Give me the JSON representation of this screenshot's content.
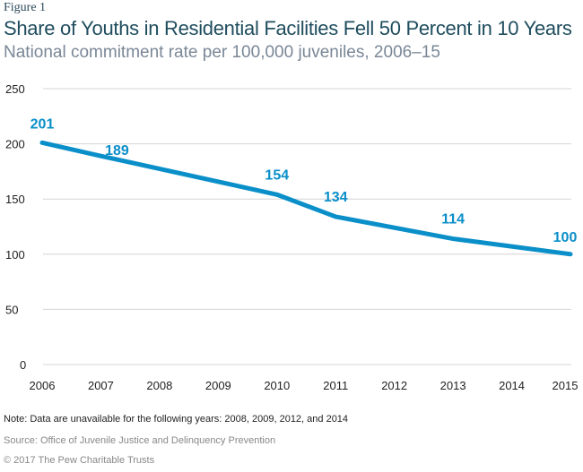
{
  "figure_label": "Figure 1",
  "chart_data": {
    "type": "line",
    "title": "Share of Youths in Residential Facilities Fell 50 Percent in 10 Years",
    "subtitle": "National commitment rate per 100,000 juveniles, 2006–15",
    "categories": [
      "2006",
      "2007",
      "2008",
      "2009",
      "2010",
      "2011",
      "2012",
      "2013",
      "2014",
      "2015"
    ],
    "points": [
      {
        "x": "2006",
        "y": 201
      },
      {
        "x": "2007",
        "y": 189
      },
      {
        "x": "2010",
        "y": 154
      },
      {
        "x": "2011",
        "y": 134
      },
      {
        "x": "2013",
        "y": 114
      },
      {
        "x": "2015",
        "y": 100
      }
    ],
    "yticks": [
      0,
      50,
      100,
      150,
      200,
      250
    ],
    "ylim": [
      0,
      250
    ],
    "grid": true,
    "line_color": "#0a8fc9",
    "xlabel": "",
    "ylabel": ""
  },
  "footer": {
    "note": "Note: Data are unavailable for the following years: 2008, 2009, 2012, and 2014",
    "source": "Source: Office of Juvenile Justice and Delinquency Prevention",
    "copyright": "© 2017 The Pew Charitable Trusts"
  }
}
